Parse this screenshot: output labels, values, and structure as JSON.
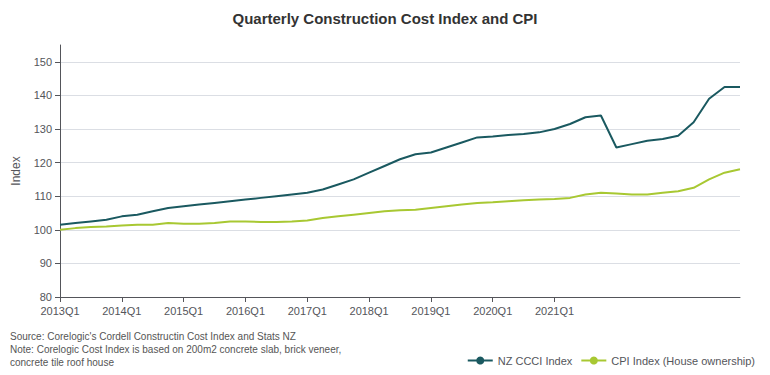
{
  "chart_data": {
    "type": "line",
    "title": "Quarterly Construction Cost Index and CPI",
    "ylabel": "Index",
    "annotations": [
      "Source: Corelogic's Cordell Constructin Cost Index and Stats NZ\nNote: Corelogic Cost Index is based on 200m2 concrete slab, brick veneer,\nconcrete tile roof house"
    ],
    "categories": [
      "2013Q1",
      null,
      null,
      null,
      "2014Q1",
      null,
      null,
      null,
      "2015Q1",
      null,
      null,
      null,
      "2016Q1",
      null,
      null,
      null,
      "2017Q1",
      null,
      null,
      null,
      "2018Q1",
      null,
      null,
      null,
      "2019Q1",
      null,
      null,
      null,
      "2020Q1",
      null,
      null,
      null,
      "2021Q1",
      null,
      null,
      null,
      null,
      null,
      null,
      null,
      null,
      null,
      null,
      null,
      null
    ],
    "series": [
      {
        "name": "NZ CCCI Index",
        "color": "#1a5960",
        "values": [
          101.5,
          102.0,
          102.5,
          103.0,
          104.0,
          104.5,
          105.5,
          106.5,
          107.0,
          107.5,
          108.0,
          108.5,
          109.0,
          109.5,
          110.0,
          110.5,
          111.0,
          112.0,
          113.5,
          115.0,
          117.0,
          119.0,
          121.0,
          122.5,
          123.0,
          124.5,
          126.0,
          127.5,
          127.8,
          128.2,
          128.5,
          129.0,
          130.0,
          131.5,
          133.5,
          134.0,
          124.5,
          125.5,
          126.5,
          127.0,
          128.0,
          132.0,
          139.0,
          142.5,
          142.5
        ]
      },
      {
        "name": "CPI Index (House ownership)",
        "color": "#a8c832",
        "values": [
          100.0,
          100.5,
          100.8,
          101.0,
          101.3,
          101.5,
          101.5,
          102.0,
          101.8,
          101.8,
          102.0,
          102.5,
          102.5,
          102.3,
          102.3,
          102.5,
          102.8,
          103.5,
          104.0,
          104.5,
          105.0,
          105.5,
          105.8,
          106.0,
          106.5,
          107.0,
          107.5,
          108.0,
          108.2,
          108.5,
          108.8,
          109.0,
          109.2,
          109.5,
          110.5,
          111.0,
          110.8,
          110.5,
          110.5,
          111.0,
          111.5,
          112.5,
          115.0,
          117.0,
          118.0
        ]
      }
    ],
    "ylim": [
      80,
      155
    ],
    "yticks": [
      80,
      90,
      100,
      110,
      120,
      130,
      140,
      150
    ],
    "grid": true,
    "legend": "lower right"
  }
}
